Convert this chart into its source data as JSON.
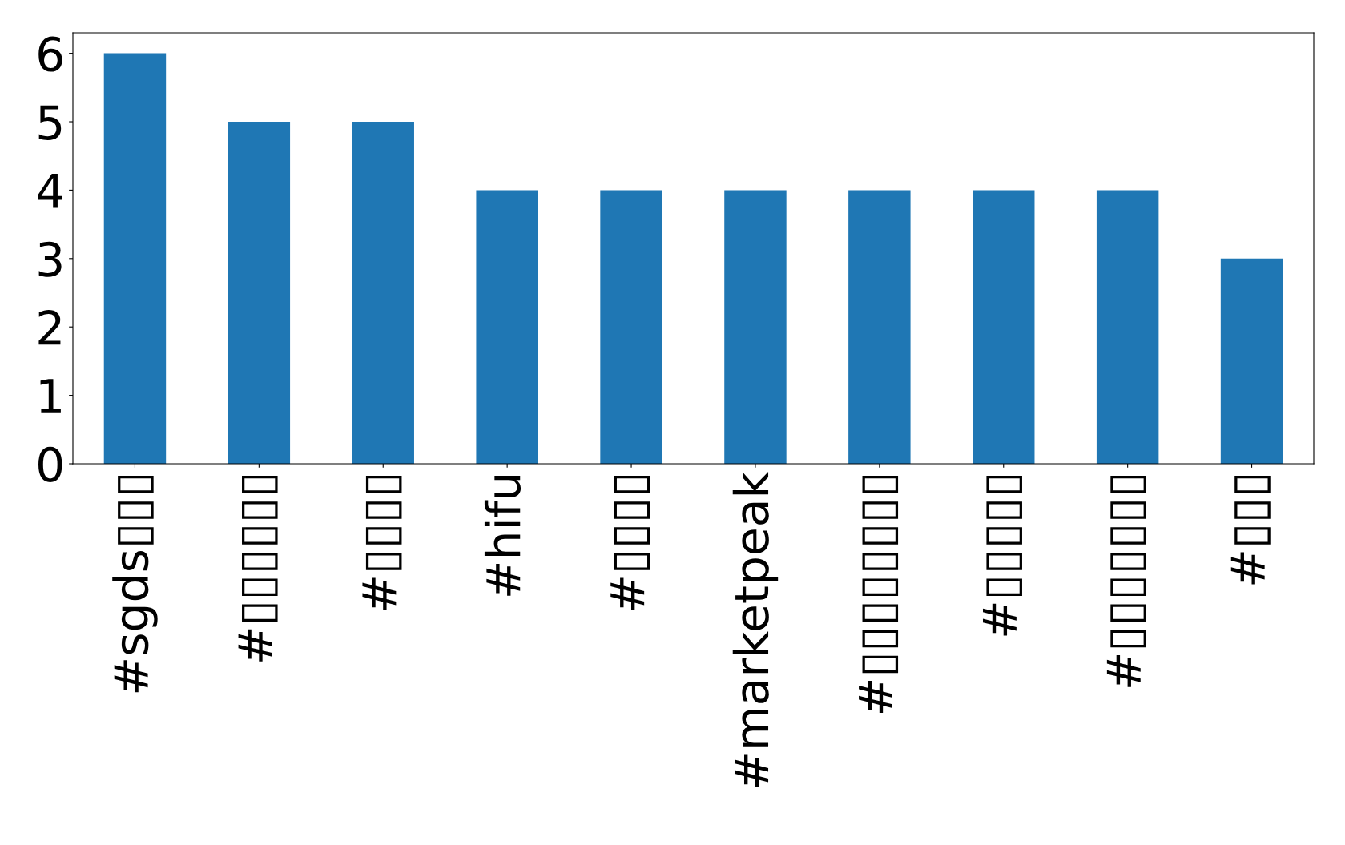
{
  "chart_data": {
    "type": "bar",
    "categories": [
      "#sgds▯▯▯",
      "#▯▯▯▯▯▯",
      "#▯▯▯▯",
      "#hifu",
      "#▯▯▯▯",
      "#marketpeak",
      "#▯▯▯▯▯▯▯▯",
      "#▯▯▯▯▯",
      "#▯▯▯▯▯▯▯",
      "#▯▯▯"
    ],
    "values": [
      6,
      5,
      5,
      4,
      4,
      4,
      4,
      4,
      4,
      3
    ],
    "color": "#1f77b4",
    "ylim": [
      0,
      6.3
    ],
    "yticks": [
      0,
      1,
      2,
      3,
      4,
      5,
      6
    ],
    "grid": false
  }
}
